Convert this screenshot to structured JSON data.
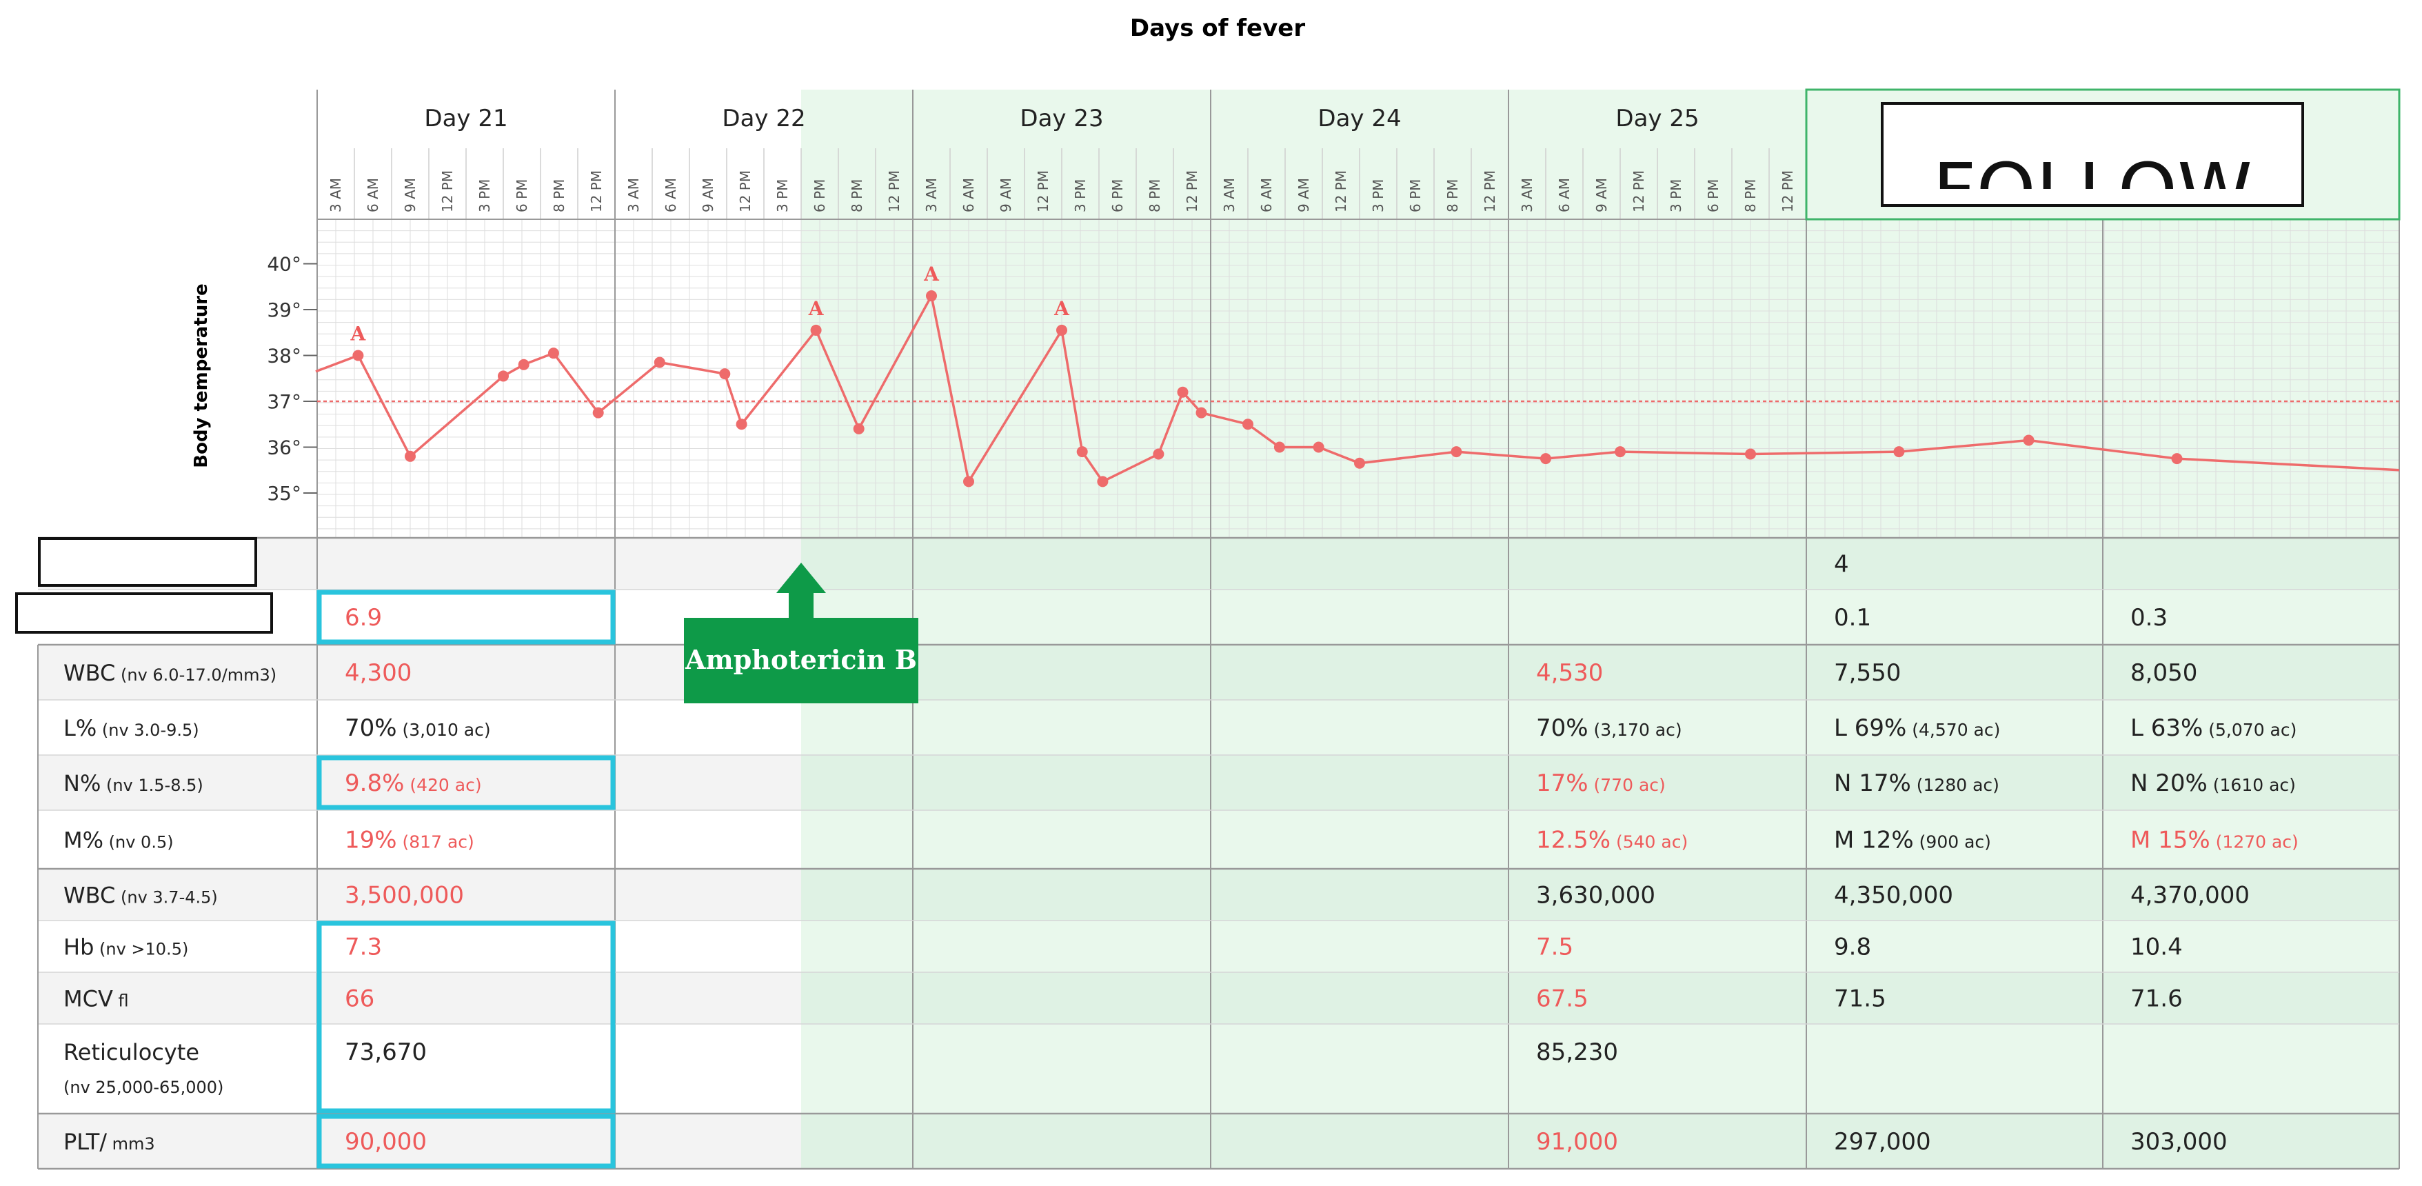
{
  "chart_data": {
    "type": "line",
    "title": "Days of fever",
    "ylabel": "Body temperature",
    "yticks": [
      "35°",
      "36°",
      "37°",
      "38°",
      "39°",
      "40°"
    ],
    "ylim": [
      34.3,
      40.9
    ],
    "reference_line": 37,
    "days": [
      {
        "label": "Day 21",
        "hours": [
          "3 AM",
          "6 AM",
          "9 AM",
          "12 PM",
          "3 PM",
          "6 PM",
          "8 PM",
          "12 PM"
        ]
      },
      {
        "label": "Day 22",
        "hours": [
          "3 AM",
          "6 AM",
          "9 AM",
          "12 PM",
          "3 PM",
          "6 PM",
          "8 PM",
          "12 PM"
        ]
      },
      {
        "label": "Day 23",
        "hours": [
          "3 AM",
          "6 AM",
          "9 AM",
          "12 PM",
          "3 PM",
          "6 PM",
          "8 PM",
          "12 PM"
        ]
      },
      {
        "label": "Day 24",
        "hours": [
          "3 AM",
          "6 AM",
          "9 AM",
          "12 PM",
          "3 PM",
          "6 PM",
          "8 PM",
          "12 PM"
        ]
      },
      {
        "label": "Day 25",
        "hours": [
          "3 AM",
          "6 AM",
          "9 AM",
          "12 PM",
          "3 PM",
          "6 PM",
          "8 PM",
          "12 PM"
        ]
      }
    ],
    "follow_label": "FOLLOW",
    "series": [
      {
        "points": [
          {
            "t": -0.15,
            "v": 37.65
          },
          {
            "t": 1.1,
            "v": 38.0
          },
          {
            "t": 2.5,
            "v": 35.8
          },
          {
            "t": 5.0,
            "v": 37.55
          },
          {
            "t": 5.55,
            "v": 37.8
          },
          {
            "t": 6.35,
            "v": 38.05
          },
          {
            "t": 7.55,
            "v": 36.75
          },
          {
            "t": 9.2,
            "v": 37.85
          },
          {
            "t": 10.95,
            "v": 37.6
          },
          {
            "t": 11.4,
            "v": 36.5
          },
          {
            "t": 13.4,
            "v": 38.55
          },
          {
            "t": 14.55,
            "v": 36.4
          },
          {
            "t": 16.5,
            "v": 39.3
          },
          {
            "t": 17.5,
            "v": 35.25
          },
          {
            "t": 20.0,
            "v": 38.55
          },
          {
            "t": 20.55,
            "v": 35.9
          },
          {
            "t": 21.1,
            "v": 35.25
          },
          {
            "t": 22.6,
            "v": 35.85
          },
          {
            "t": 23.25,
            "v": 37.2
          },
          {
            "t": 23.75,
            "v": 36.75
          },
          {
            "t": 25.0,
            "v": 36.5
          },
          {
            "t": 25.85,
            "v": 36.0
          },
          {
            "t": 26.9,
            "v": 36.0
          },
          {
            "t": 28.0,
            "v": 35.65
          },
          {
            "t": 30.6,
            "v": 35.9
          },
          {
            "t": 33.0,
            "v": 35.75
          },
          {
            "t": 35.0,
            "v": 35.9
          },
          {
            "t": 38.5,
            "v": 35.85
          },
          {
            "t": 42.5,
            "v": 35.9
          },
          {
            "t": 46.0,
            "v": 36.15
          },
          {
            "t": 50.0,
            "v": 35.75
          },
          {
            "t": 56.0,
            "v": 35.5,
            "nomarker": true
          }
        ]
      }
    ],
    "annotations": [
      {
        "t": 1.1,
        "v": 38.0,
        "text": "A"
      },
      {
        "t": 13.4,
        "v": 38.55,
        "text": "A"
      },
      {
        "t": 16.5,
        "v": 39.3,
        "text": "A"
      },
      {
        "t": 20.0,
        "v": 38.55,
        "text": "A"
      }
    ],
    "treatment": {
      "label": "Amphotericin B",
      "start_t": 13.0
    }
  },
  "table": {
    "rows": [
      {
        "label": "",
        "nv": "",
        "cells": [
          {
            "col": 5,
            "value": "4",
            "red": false
          }
        ]
      },
      {
        "label": "",
        "nv": "",
        "cells": [
          {
            "col": 0,
            "value": "6.9",
            "red": true
          },
          {
            "col": 5,
            "value": "0.1",
            "red": false
          },
          {
            "col": 6,
            "value": "0.3",
            "red": false
          }
        ]
      },
      {
        "label": "WBC",
        "nv": "(nv 6.0-17.0/mm3)",
        "cells": [
          {
            "col": 0,
            "value": "4,300",
            "red": true
          },
          {
            "col": 4,
            "value": "4,530",
            "red": true
          },
          {
            "col": 5,
            "value": "7,550",
            "red": false
          },
          {
            "col": 6,
            "value": "8,050",
            "red": false
          }
        ]
      },
      {
        "label": "L%",
        "nv": "(nv 3.0-9.5)",
        "cells": [
          {
            "col": 0,
            "value": "70%",
            "extra": "(3,010 ac)",
            "red": false
          },
          {
            "col": 4,
            "value": "70%",
            "extra": "(3,170 ac)",
            "red": false
          },
          {
            "col": 5,
            "value": "L 69%",
            "extra": "(4,570 ac)",
            "red": false
          },
          {
            "col": 6,
            "value": "L 63%",
            "extra": "(5,070 ac)",
            "red": false
          }
        ]
      },
      {
        "label": "N%",
        "nv": "(nv 1.5-8.5)",
        "cells": [
          {
            "col": 0,
            "value": "9.8%",
            "extra": "(420 ac)",
            "red": true
          },
          {
            "col": 4,
            "value": "17%",
            "extra": "(770 ac)",
            "red": true
          },
          {
            "col": 5,
            "value": "N 17%",
            "extra": "(1280 ac)",
            "red": false
          },
          {
            "col": 6,
            "value": "N 20%",
            "extra": "(1610 ac)",
            "red": false
          }
        ]
      },
      {
        "label": "M%",
        "nv": "(nv 0.5)",
        "cells": [
          {
            "col": 0,
            "value": "19%",
            "extra": "(817 ac)",
            "red": true
          },
          {
            "col": 4,
            "value": "12.5%",
            "extra": "(540 ac)",
            "red": true
          },
          {
            "col": 5,
            "value": "M 12%",
            "extra": "(900 ac)",
            "red": false
          },
          {
            "col": 6,
            "value": "M 15%",
            "extra": "(1270 ac)",
            "red": true
          }
        ]
      },
      {
        "label": "WBC",
        "nv": "(nv 3.7-4.5)",
        "cells": [
          {
            "col": 0,
            "value": "3,500,000",
            "red": true
          },
          {
            "col": 4,
            "value": "3,630,000",
            "red": false
          },
          {
            "col": 5,
            "value": "4,350,000",
            "red": false
          },
          {
            "col": 6,
            "value": "4,370,000",
            "red": false
          }
        ]
      },
      {
        "label": "Hb",
        "nv": "(nv >10.5)",
        "cells": [
          {
            "col": 0,
            "value": "7.3",
            "red": true
          },
          {
            "col": 4,
            "value": "7.5",
            "red": true
          },
          {
            "col": 5,
            "value": "9.8",
            "red": false
          },
          {
            "col": 6,
            "value": "10.4",
            "red": false
          }
        ]
      },
      {
        "label": "MCV",
        "nv": "fl",
        "cells": [
          {
            "col": 0,
            "value": "66",
            "red": true
          },
          {
            "col": 4,
            "value": "67.5",
            "red": true
          },
          {
            "col": 5,
            "value": "71.5",
            "red": false
          },
          {
            "col": 6,
            "value": "71.6",
            "red": false
          }
        ]
      },
      {
        "label": "Reticulocyte",
        "nv": "(nv 25,000-65,000)",
        "nv_newline": true,
        "cells": [
          {
            "col": 0,
            "value": "73,670",
            "red": false
          },
          {
            "col": 4,
            "value": "85,230",
            "red": false
          }
        ]
      },
      {
        "label": "PLT/",
        "nv": "mm3",
        "cells": [
          {
            "col": 0,
            "value": "90,000",
            "red": true
          },
          {
            "col": 4,
            "value": "91,000",
            "red": true
          },
          {
            "col": 5,
            "value": "297,000",
            "red": false
          },
          {
            "col": 6,
            "value": "303,000",
            "red": false
          }
        ]
      }
    ],
    "highlighted_cells": [
      {
        "rows": [
          1
        ]
      },
      {
        "rows": [
          4
        ]
      },
      {
        "rows": [
          7,
          8,
          9
        ]
      },
      {
        "rows": [
          10
        ]
      }
    ],
    "redacted_labels": [
      0,
      1
    ]
  },
  "colors": {
    "line": "#ee6b6b",
    "reference": "#ee6b6b",
    "highlight": "#29c4dd",
    "treatment_bg": "#e9f8ec",
    "treatment_bg_alt": "#dff2e4",
    "arrow": "#0e9a48",
    "follow_border": "#3fb46a"
  }
}
